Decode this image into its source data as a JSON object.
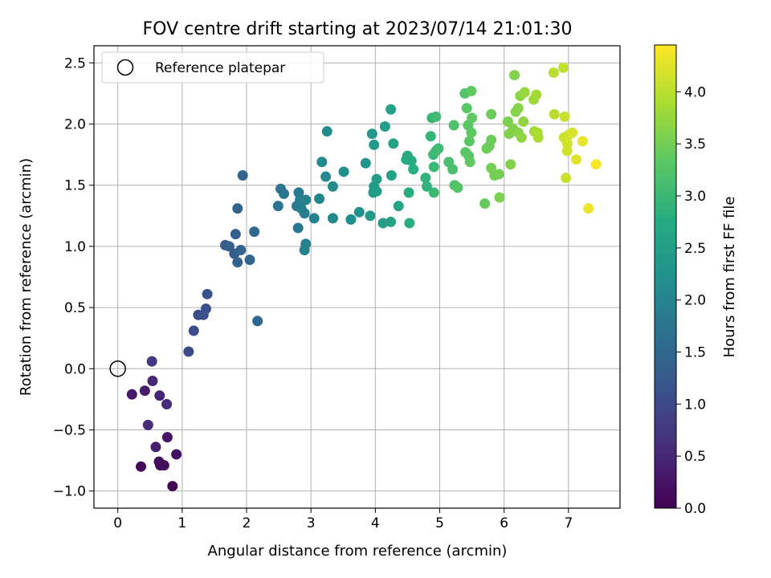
{
  "chart_data": {
    "type": "scatter",
    "title": "FOV centre drift starting at 2023/07/14 21:01:30",
    "xlabel": "Angular distance from reference (arcmin)",
    "ylabel": "Rotation from reference (arcmin)",
    "xlim": [
      -0.37,
      7.8
    ],
    "ylim": [
      -1.14,
      2.64
    ],
    "xticks": [
      0,
      1,
      2,
      3,
      4,
      5,
      6,
      7
    ],
    "yticks": [
      -1.0,
      -0.5,
      0.0,
      0.5,
      1.0,
      1.5,
      2.0,
      2.5
    ],
    "xtick_labels": [
      "0",
      "1",
      "2",
      "3",
      "4",
      "5",
      "6",
      "7"
    ],
    "ytick_labels": [
      "−1.0",
      "−0.5",
      "0.0",
      "0.5",
      "1.0",
      "1.5",
      "2.0",
      "2.5"
    ],
    "grid": true,
    "legend": {
      "placement": "top-left",
      "entries": [
        {
          "label": "Reference platepar",
          "marker": "open-circle"
        }
      ]
    },
    "reference_point": {
      "x": 0,
      "y": 0
    },
    "colorbar": {
      "label": "Hours from first FF file",
      "colormap": "viridis",
      "range": [
        0.0,
        4.45
      ],
      "ticks": [
        0.0,
        0.5,
        1.0,
        1.5,
        2.0,
        2.5,
        3.0,
        3.5,
        4.0
      ],
      "tick_labels": [
        "0.0",
        "0.5",
        "1.0",
        "1.5",
        "2.0",
        "2.5",
        "3.0",
        "3.5",
        "4.0"
      ]
    },
    "points": [
      {
        "x": 0.22,
        "y": -0.21,
        "t": 0.3
      },
      {
        "x": 0.36,
        "y": -0.8,
        "t": 0.1
      },
      {
        "x": 0.42,
        "y": -0.18,
        "t": 0.35
      },
      {
        "x": 0.47,
        "y": -0.46,
        "t": 0.55
      },
      {
        "x": 0.53,
        "y": 0.06,
        "t": 0.7
      },
      {
        "x": 0.54,
        "y": -0.1,
        "t": 0.5
      },
      {
        "x": 0.59,
        "y": -0.64,
        "t": 0.4
      },
      {
        "x": 0.64,
        "y": -0.76,
        "t": 0.2
      },
      {
        "x": 0.65,
        "y": -0.22,
        "t": 0.45
      },
      {
        "x": 0.66,
        "y": -0.79,
        "t": 0.1
      },
      {
        "x": 0.72,
        "y": -0.79,
        "t": 0.15
      },
      {
        "x": 0.76,
        "y": -0.29,
        "t": 0.55
      },
      {
        "x": 0.77,
        "y": -0.56,
        "t": 0.25
      },
      {
        "x": 0.85,
        "y": -0.96,
        "t": 0.05
      },
      {
        "x": 0.91,
        "y": -0.7,
        "t": 0.2
      },
      {
        "x": 1.1,
        "y": 0.14,
        "t": 1.0
      },
      {
        "x": 1.18,
        "y": 0.31,
        "t": 1.05
      },
      {
        "x": 1.25,
        "y": 0.44,
        "t": 1.05
      },
      {
        "x": 1.33,
        "y": 0.44,
        "t": 1.1
      },
      {
        "x": 1.37,
        "y": 0.49,
        "t": 1.1
      },
      {
        "x": 1.39,
        "y": 0.61,
        "t": 1.15
      },
      {
        "x": 1.67,
        "y": 1.01,
        "t": 1.3
      },
      {
        "x": 1.73,
        "y": 1.0,
        "t": 1.35
      },
      {
        "x": 1.81,
        "y": 0.94,
        "t": 1.3
      },
      {
        "x": 1.83,
        "y": 1.1,
        "t": 1.35
      },
      {
        "x": 1.86,
        "y": 0.87,
        "t": 1.4
      },
      {
        "x": 1.86,
        "y": 1.31,
        "t": 1.4
      },
      {
        "x": 1.91,
        "y": 0.97,
        "t": 1.45
      },
      {
        "x": 1.94,
        "y": 1.58,
        "t": 1.45
      },
      {
        "x": 2.05,
        "y": 0.89,
        "t": 1.5
      },
      {
        "x": 2.12,
        "y": 1.12,
        "t": 1.5
      },
      {
        "x": 2.17,
        "y": 0.39,
        "t": 1.5
      },
      {
        "x": 2.49,
        "y": 1.33,
        "t": 1.7
      },
      {
        "x": 2.53,
        "y": 1.47,
        "t": 1.75
      },
      {
        "x": 2.58,
        "y": 1.43,
        "t": 1.75
      },
      {
        "x": 2.78,
        "y": 1.33,
        "t": 1.8
      },
      {
        "x": 2.8,
        "y": 1.15,
        "t": 1.8
      },
      {
        "x": 2.81,
        "y": 1.44,
        "t": 1.85
      },
      {
        "x": 2.83,
        "y": 1.38,
        "t": 1.9
      },
      {
        "x": 2.85,
        "y": 1.31,
        "t": 1.9
      },
      {
        "x": 2.9,
        "y": 1.27,
        "t": 1.9
      },
      {
        "x": 2.9,
        "y": 0.97,
        "t": 1.95
      },
      {
        "x": 2.92,
        "y": 1.02,
        "t": 1.95
      },
      {
        "x": 2.92,
        "y": 1.38,
        "t": 1.95
      },
      {
        "x": 3.05,
        "y": 1.23,
        "t": 2.0
      },
      {
        "x": 3.13,
        "y": 1.39,
        "t": 2.05
      },
      {
        "x": 3.17,
        "y": 1.69,
        "t": 2.1
      },
      {
        "x": 3.23,
        "y": 1.57,
        "t": 2.1
      },
      {
        "x": 3.25,
        "y": 1.94,
        "t": 2.15
      },
      {
        "x": 3.34,
        "y": 1.23,
        "t": 2.1
      },
      {
        "x": 3.34,
        "y": 1.49,
        "t": 2.15
      },
      {
        "x": 3.51,
        "y": 1.61,
        "t": 2.2
      },
      {
        "x": 3.62,
        "y": 1.22,
        "t": 2.2
      },
      {
        "x": 3.75,
        "y": 1.28,
        "t": 2.25
      },
      {
        "x": 3.85,
        "y": 1.68,
        "t": 2.3
      },
      {
        "x": 3.92,
        "y": 1.25,
        "t": 2.35
      },
      {
        "x": 3.95,
        "y": 1.92,
        "t": 2.35
      },
      {
        "x": 3.97,
        "y": 1.44,
        "t": 2.4
      },
      {
        "x": 3.98,
        "y": 1.49,
        "t": 2.4
      },
      {
        "x": 3.98,
        "y": 1.83,
        "t": 2.4
      },
      {
        "x": 4.02,
        "y": 1.45,
        "t": 2.45
      },
      {
        "x": 4.02,
        "y": 1.55,
        "t": 2.45
      },
      {
        "x": 4.12,
        "y": 1.19,
        "t": 2.5
      },
      {
        "x": 4.15,
        "y": 1.98,
        "t": 2.5
      },
      {
        "x": 4.24,
        "y": 2.12,
        "t": 2.55
      },
      {
        "x": 4.24,
        "y": 1.2,
        "t": 2.55
      },
      {
        "x": 4.25,
        "y": 1.58,
        "t": 2.55
      },
      {
        "x": 4.28,
        "y": 1.84,
        "t": 2.6
      },
      {
        "x": 4.36,
        "y": 1.33,
        "t": 2.6
      },
      {
        "x": 4.48,
        "y": 1.71,
        "t": 2.7
      },
      {
        "x": 4.5,
        "y": 1.74,
        "t": 2.7
      },
      {
        "x": 4.52,
        "y": 1.44,
        "t": 2.75
      },
      {
        "x": 4.53,
        "y": 1.19,
        "t": 2.8
      },
      {
        "x": 4.56,
        "y": 1.7,
        "t": 2.75
      },
      {
        "x": 4.59,
        "y": 1.63,
        "t": 2.8
      },
      {
        "x": 4.78,
        "y": 1.56,
        "t": 2.9
      },
      {
        "x": 4.8,
        "y": 1.49,
        "t": 2.9
      },
      {
        "x": 4.86,
        "y": 1.9,
        "t": 2.95
      },
      {
        "x": 4.88,
        "y": 2.05,
        "t": 2.95
      },
      {
        "x": 4.9,
        "y": 1.75,
        "t": 3.0
      },
      {
        "x": 4.91,
        "y": 1.65,
        "t": 3.0
      },
      {
        "x": 4.91,
        "y": 1.44,
        "t": 3.0
      },
      {
        "x": 4.94,
        "y": 2.06,
        "t": 3.05
      },
      {
        "x": 4.94,
        "y": 1.78,
        "t": 3.05
      },
      {
        "x": 4.98,
        "y": 1.8,
        "t": 3.05
      },
      {
        "x": 5.14,
        "y": 1.69,
        "t": 3.15
      },
      {
        "x": 5.2,
        "y": 1.63,
        "t": 3.15
      },
      {
        "x": 5.22,
        "y": 1.99,
        "t": 3.2
      },
      {
        "x": 5.23,
        "y": 1.5,
        "t": 3.2
      },
      {
        "x": 5.28,
        "y": 1.48,
        "t": 3.25
      },
      {
        "x": 5.39,
        "y": 2.25,
        "t": 3.25
      },
      {
        "x": 5.4,
        "y": 1.77,
        "t": 3.3
      },
      {
        "x": 5.42,
        "y": 2.13,
        "t": 3.3
      },
      {
        "x": 5.44,
        "y": 1.99,
        "t": 3.3
      },
      {
        "x": 5.45,
        "y": 1.74,
        "t": 3.3
      },
      {
        "x": 5.46,
        "y": 1.86,
        "t": 3.3
      },
      {
        "x": 5.47,
        "y": 1.69,
        "t": 3.35
      },
      {
        "x": 5.49,
        "y": 1.93,
        "t": 3.35
      },
      {
        "x": 5.49,
        "y": 2.27,
        "t": 3.35
      },
      {
        "x": 5.5,
        "y": 2.05,
        "t": 3.35
      },
      {
        "x": 5.7,
        "y": 1.35,
        "t": 3.4
      },
      {
        "x": 5.73,
        "y": 1.8,
        "t": 3.45
      },
      {
        "x": 5.77,
        "y": 1.82,
        "t": 3.45
      },
      {
        "x": 5.8,
        "y": 2.08,
        "t": 3.45
      },
      {
        "x": 5.8,
        "y": 1.87,
        "t": 3.45
      },
      {
        "x": 5.8,
        "y": 1.64,
        "t": 3.5
      },
      {
        "x": 5.85,
        "y": 1.58,
        "t": 3.5
      },
      {
        "x": 5.92,
        "y": 1.59,
        "t": 3.5
      },
      {
        "x": 5.93,
        "y": 1.4,
        "t": 3.55
      },
      {
        "x": 6.06,
        "y": 2.02,
        "t": 3.55
      },
      {
        "x": 6.08,
        "y": 1.92,
        "t": 3.6
      },
      {
        "x": 6.1,
        "y": 1.67,
        "t": 3.6
      },
      {
        "x": 6.14,
        "y": 1.96,
        "t": 3.6
      },
      {
        "x": 6.16,
        "y": 2.4,
        "t": 3.6
      },
      {
        "x": 6.18,
        "y": 2.1,
        "t": 3.65
      },
      {
        "x": 6.22,
        "y": 1.93,
        "t": 3.65
      },
      {
        "x": 6.22,
        "y": 2.13,
        "t": 3.65
      },
      {
        "x": 6.25,
        "y": 2.23,
        "t": 3.7
      },
      {
        "x": 6.27,
        "y": 1.89,
        "t": 3.7
      },
      {
        "x": 6.3,
        "y": 2.02,
        "t": 3.7
      },
      {
        "x": 6.32,
        "y": 2.26,
        "t": 3.75
      },
      {
        "x": 6.46,
        "y": 2.2,
        "t": 3.8
      },
      {
        "x": 6.47,
        "y": 1.94,
        "t": 3.85
      },
      {
        "x": 6.5,
        "y": 2.24,
        "t": 3.85
      },
      {
        "x": 6.53,
        "y": 1.89,
        "t": 3.9
      },
      {
        "x": 6.52,
        "y": 1.93,
        "t": 3.9
      },
      {
        "x": 6.77,
        "y": 2.42,
        "t": 4.0
      },
      {
        "x": 6.78,
        "y": 2.08,
        "t": 4.0
      },
      {
        "x": 6.92,
        "y": 2.46,
        "t": 4.05
      },
      {
        "x": 6.93,
        "y": 1.89,
        "t": 4.1
      },
      {
        "x": 6.94,
        "y": 2.06,
        "t": 4.1
      },
      {
        "x": 6.96,
        "y": 1.56,
        "t": 4.1
      },
      {
        "x": 6.98,
        "y": 1.84,
        "t": 4.15
      },
      {
        "x": 6.98,
        "y": 1.78,
        "t": 4.15
      },
      {
        "x": 7.0,
        "y": 1.91,
        "t": 4.15
      },
      {
        "x": 7.06,
        "y": 1.93,
        "t": 4.2
      },
      {
        "x": 7.12,
        "y": 1.71,
        "t": 4.25
      },
      {
        "x": 7.22,
        "y": 1.86,
        "t": 4.3
      },
      {
        "x": 7.31,
        "y": 1.31,
        "t": 4.35
      },
      {
        "x": 7.43,
        "y": 1.67,
        "t": 4.4
      }
    ]
  }
}
